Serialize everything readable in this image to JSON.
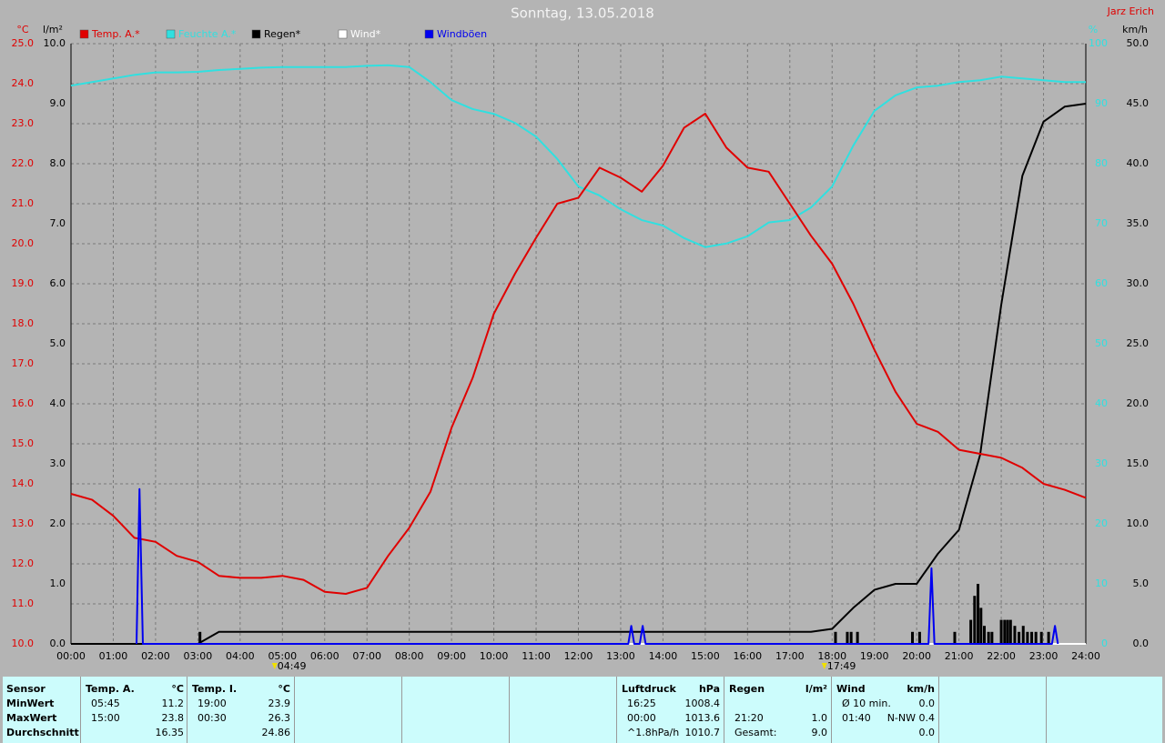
{
  "chart_data": {
    "type": "line",
    "title": "Sonntag, 13.05.2018",
    "author": "Jarz Erich",
    "y_label": "°C",
    "y3_label": "l/m²",
    "y2_label": "%",
    "y4_label": "km/h",
    "xlim": [
      0,
      24
    ],
    "xticks": [
      {
        "value": 0,
        "label": "00:00"
      },
      {
        "value": 1,
        "label": "01:00"
      },
      {
        "value": 2,
        "label": "02:00"
      },
      {
        "value": 3,
        "label": "03:00"
      },
      {
        "value": 4,
        "label": "04:00"
      },
      {
        "value": 5,
        "label": "05:00"
      },
      {
        "value": 6,
        "label": "06:00"
      },
      {
        "value": 7,
        "label": "07:00"
      },
      {
        "value": 8,
        "label": "08:00"
      },
      {
        "value": 9,
        "label": "09:00"
      },
      {
        "value": 10,
        "label": "10:00"
      },
      {
        "value": 11,
        "label": "11:00"
      },
      {
        "value": 12,
        "label": "12:00"
      },
      {
        "value": 13,
        "label": "13:00"
      },
      {
        "value": 14,
        "label": "14:00"
      },
      {
        "value": 15,
        "label": "15:00"
      },
      {
        "value": 16,
        "label": "16:00"
      },
      {
        "value": 17,
        "label": "17:00"
      },
      {
        "value": 18,
        "label": "18:00"
      },
      {
        "value": 19,
        "label": "19:00"
      },
      {
        "value": 20,
        "label": "20:00"
      },
      {
        "value": 21,
        "label": "21:00"
      },
      {
        "value": 22,
        "label": "22:00"
      },
      {
        "value": 23,
        "label": "23:00"
      },
      {
        "value": 24,
        "label": "24:00"
      }
    ],
    "ylim": [
      10,
      25
    ],
    "yticks": [
      {
        "value": 10,
        "label": "10.0"
      },
      {
        "value": 11,
        "label": "11.0"
      },
      {
        "value": 12,
        "label": "12.0"
      },
      {
        "value": 13,
        "label": "13.0"
      },
      {
        "value": 14,
        "label": "14.0"
      },
      {
        "value": 15,
        "label": "15.0"
      },
      {
        "value": 16,
        "label": "16.0"
      },
      {
        "value": 17,
        "label": "17.0"
      },
      {
        "value": 18,
        "label": "18.0"
      },
      {
        "value": 19,
        "label": "19.0"
      },
      {
        "value": 20,
        "label": "20.0"
      },
      {
        "value": 21,
        "label": "21.0"
      },
      {
        "value": 22,
        "label": "22.0"
      },
      {
        "value": 23,
        "label": "23.0"
      },
      {
        "value": 24,
        "label": "24.0"
      },
      {
        "value": 25,
        "label": "25.0"
      }
    ],
    "y3lim": [
      0,
      10
    ],
    "y3ticks": [
      {
        "value": 0,
        "label": "0.0"
      },
      {
        "value": 1,
        "label": "1.0"
      },
      {
        "value": 2,
        "label": "2.0"
      },
      {
        "value": 3,
        "label": "3.0"
      },
      {
        "value": 4,
        "label": "4.0"
      },
      {
        "value": 5,
        "label": "5.0"
      },
      {
        "value": 6,
        "label": "6.0"
      },
      {
        "value": 7,
        "label": "7.0"
      },
      {
        "value": 8,
        "label": "8.0"
      },
      {
        "value": 9,
        "label": "9.0"
      },
      {
        "value": 10,
        "label": "10.0"
      }
    ],
    "y2lim": [
      0,
      100
    ],
    "y2ticks": [
      0,
      10,
      20,
      30,
      40,
      50,
      60,
      70,
      80,
      90,
      100
    ],
    "y4lim": [
      0,
      50
    ],
    "y4ticks": [
      {
        "value": 0,
        "label": "0.0"
      },
      {
        "value": 5,
        "label": "5.0"
      },
      {
        "value": 10,
        "label": "10.0"
      },
      {
        "value": 15,
        "label": "15.0"
      },
      {
        "value": 20,
        "label": "20.0"
      },
      {
        "value": 25,
        "label": "25.0"
      },
      {
        "value": 30,
        "label": "30.0"
      },
      {
        "value": 35,
        "label": "35.0"
      },
      {
        "value": 40,
        "label": "40.0"
      },
      {
        "value": 45,
        "label": "45.0"
      },
      {
        "value": 50,
        "label": "50.0"
      }
    ],
    "grid": true,
    "series": [
      {
        "name": "Temp. A.*",
        "color": "#e00000",
        "axis": "y",
        "x": [
          0,
          0.5,
          1,
          1.5,
          2,
          2.5,
          3,
          3.5,
          4,
          4.5,
          5,
          5.5,
          6,
          6.5,
          7,
          7.5,
          8,
          8.5,
          9,
          9.5,
          10,
          10.5,
          11,
          11.5,
          12,
          12.5,
          13,
          13.5,
          14,
          14.5,
          15,
          15.5,
          16,
          16.5,
          17,
          17.5,
          18,
          18.5,
          19,
          19.5,
          20,
          20.5,
          21,
          21.5,
          22,
          22.5,
          23,
          23.5,
          24
        ],
        "values": [
          13.75,
          13.6,
          13.2,
          12.65,
          12.55,
          12.2,
          12.05,
          11.7,
          11.65,
          11.65,
          11.7,
          11.6,
          11.3,
          11.25,
          11.4,
          12.2,
          12.9,
          13.8,
          15.4,
          16.65,
          18.25,
          19.25,
          20.15,
          21.0,
          21.15,
          21.9,
          21.65,
          21.3,
          21.95,
          22.9,
          23.25,
          22.4,
          21.9,
          21.8,
          21.0,
          20.2,
          19.5,
          18.5,
          17.35,
          16.3,
          15.5,
          15.3,
          14.85,
          14.75,
          14.65,
          14.4,
          14.0,
          13.85,
          13.65
        ]
      },
      {
        "name": "Feuchte A.*",
        "color": "#30e0e0",
        "axis": "y2",
        "x": [
          0,
          0.5,
          1,
          1.5,
          2,
          2.5,
          3,
          3.5,
          4,
          4.5,
          5,
          5.5,
          6,
          6.5,
          7,
          7.5,
          8,
          8.5,
          9,
          9.5,
          10,
          10.5,
          11,
          11.5,
          12,
          12.5,
          13,
          13.5,
          14,
          14.5,
          15,
          15.5,
          16,
          16.5,
          17,
          17.5,
          18,
          18.5,
          19,
          19.5,
          20,
          20.5,
          21,
          21.5,
          22,
          22.5,
          23,
          23.5,
          24
        ],
        "values": [
          93,
          93.6,
          94.2,
          94.8,
          95.2,
          95.2,
          95.3,
          95.6,
          95.8,
          96,
          96.1,
          96.1,
          96.1,
          96.1,
          96.3,
          96.4,
          96.1,
          93.6,
          90.6,
          89.1,
          88.3,
          86.8,
          84.5,
          80.8,
          76.2,
          74.7,
          72.4,
          70.6,
          69.7,
          67.6,
          66.1,
          66.7,
          67.9,
          70.2,
          70.6,
          72.7,
          76.2,
          83,
          88.8,
          91.4,
          92.7,
          93,
          93.6,
          93.9,
          94.5,
          94.2,
          93.9,
          93.6,
          93.6
        ]
      },
      {
        "name": "Regen*",
        "color": "#000000",
        "axis": "y3",
        "x": [
          0,
          0.5,
          1,
          1.5,
          2,
          2.5,
          3,
          3.5,
          4,
          4.5,
          5,
          5.5,
          6,
          6.5,
          7,
          7.5,
          8,
          8.5,
          9,
          9.5,
          10,
          10.5,
          11,
          11.5,
          12,
          12.5,
          13,
          13.5,
          14,
          14.5,
          15,
          15.5,
          16,
          16.5,
          17,
          17.5,
          18,
          18.5,
          19,
          19.5,
          20,
          20.5,
          21,
          21.5,
          22,
          22.5,
          23,
          23.5,
          24
        ],
        "values": [
          0,
          0,
          0,
          0,
          0,
          0,
          0,
          0.2,
          0.2,
          0.2,
          0.2,
          0.2,
          0.2,
          0.2,
          0.2,
          0.2,
          0.2,
          0.2,
          0.2,
          0.2,
          0.2,
          0.2,
          0.2,
          0.2,
          0.2,
          0.2,
          0.2,
          0.2,
          0.2,
          0.2,
          0.2,
          0.2,
          0.2,
          0.2,
          0.2,
          0.2,
          0.25,
          0.6,
          0.9,
          1.0,
          1.0,
          1.5,
          1.9,
          3.15,
          5.65,
          7.8,
          8.7,
          8.95,
          9.0
        ]
      },
      {
        "name": "Wind*",
        "color": "#ffffff",
        "axis": "y4",
        "x": [
          0,
          24
        ],
        "values": [
          0,
          0
        ]
      },
      {
        "name": "Windböen",
        "color": "#0000f0",
        "axis": "y4",
        "x": [
          1.55,
          1.62,
          1.7,
          13.18,
          13.25,
          13.32,
          13.45,
          13.52,
          13.59,
          20.28,
          20.35,
          20.42,
          23.2,
          23.27,
          23.34
        ],
        "values": [
          0,
          12.9,
          0,
          0,
          1.5,
          0,
          0,
          1.5,
          0,
          0,
          6.3,
          0,
          0,
          1.5,
          0
        ]
      }
    ],
    "rain_bars": {
      "color": "#000000",
      "axis": "y3",
      "x": [
        3.05,
        18.08,
        18.36,
        18.45,
        18.6,
        19.9,
        20.07,
        20.9,
        21.28,
        21.37,
        21.45,
        21.52,
        21.6,
        21.7,
        21.78,
        22.0,
        22.08,
        22.15,
        22.22,
        22.32,
        22.42,
        22.52,
        22.62,
        22.72,
        22.82,
        22.95,
        23.12
      ],
      "values": [
        0.2,
        0.2,
        0.2,
        0.2,
        0.2,
        0.2,
        0.2,
        0.2,
        0.4,
        0.8,
        1.0,
        0.6,
        0.3,
        0.2,
        0.2,
        0.4,
        0.4,
        0.4,
        0.4,
        0.3,
        0.2,
        0.3,
        0.2,
        0.2,
        0.2,
        0.2,
        0.2
      ]
    },
    "annotations": [
      {
        "x": 4.8167,
        "text": "04:49"
      },
      {
        "x": 17.8167,
        "text": "17:49"
      }
    ]
  },
  "table": {
    "row_labels": {
      "header": "Sensor",
      "rows": [
        "MinWert",
        "MaxWert",
        "Durchschnitt"
      ]
    },
    "groups": [
      {
        "header": "Temp. A.",
        "unit": "°C",
        "rows": [
          [
            "05:45",
            "11.2"
          ],
          [
            "15:00",
            "23.8"
          ],
          [
            null,
            "16.35"
          ]
        ]
      },
      {
        "header": "Temp. I.",
        "unit": "°C",
        "rows": [
          [
            "19:00",
            "23.9"
          ],
          [
            "00:30",
            "26.3"
          ],
          [
            null,
            "24.86"
          ]
        ]
      },
      {
        "header": "Luftdruck",
        "unit": "hPa",
        "rows": [
          [
            "16:25",
            "1008.4"
          ],
          [
            "00:00",
            "1013.6"
          ],
          [
            "^1.8hPa/h",
            "1010.7"
          ]
        ]
      },
      {
        "header": "Regen",
        "unit": "l/m²",
        "rows": [
          [
            null,
            null
          ],
          [
            "21:20",
            "1.0"
          ],
          [
            "Gesamt:",
            "9.0"
          ]
        ]
      },
      {
        "header": "Wind",
        "unit": "km/h",
        "rows": [
          [
            "Ø 10 min.",
            "0.0"
          ],
          [
            "01:40",
            "N-NW 0.4"
          ],
          [
            null,
            "0.0"
          ]
        ]
      }
    ]
  }
}
